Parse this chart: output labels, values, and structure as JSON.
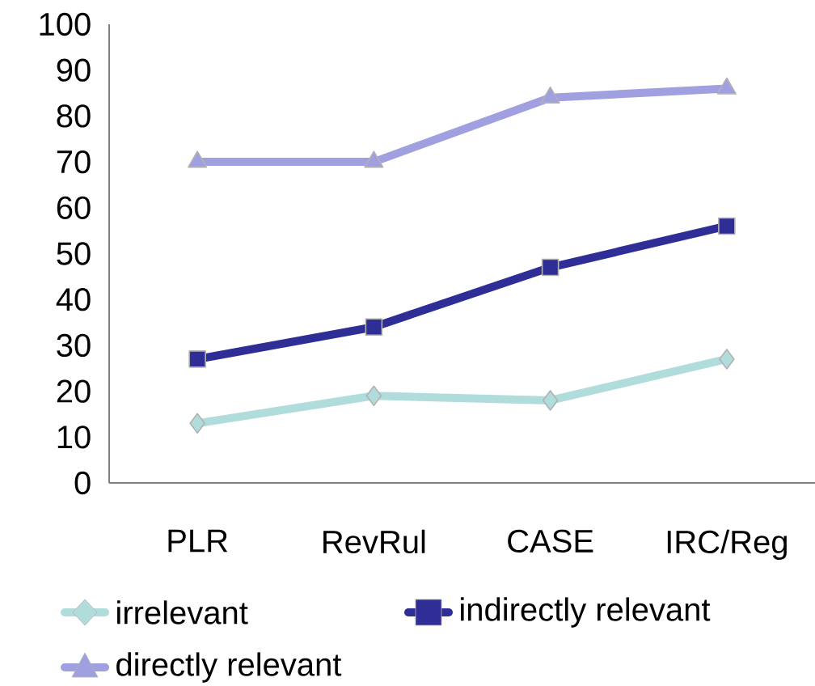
{
  "chart_data": {
    "type": "line",
    "categories": [
      "PLR",
      "RevRul",
      "CASE",
      "IRC/Reg"
    ],
    "series": [
      {
        "name": "irrelevant",
        "color": "#b0dcdc",
        "marker": "diamond",
        "values": [
          13,
          19,
          18,
          27
        ]
      },
      {
        "name": "indirectly relevant",
        "color": "#2e2e96",
        "marker": "square",
        "values": [
          27,
          34,
          47,
          56
        ]
      },
      {
        "name": "directly relevant",
        "color": "#a0a0e0",
        "marker": "triangle",
        "values": [
          70,
          70,
          84,
          86
        ]
      }
    ],
    "ylim": [
      0,
      100
    ],
    "yticks": [
      0,
      10,
      20,
      30,
      40,
      50,
      60,
      70,
      80,
      90,
      100
    ],
    "grid": false,
    "legend": "bottom",
    "line_style": "solid"
  }
}
